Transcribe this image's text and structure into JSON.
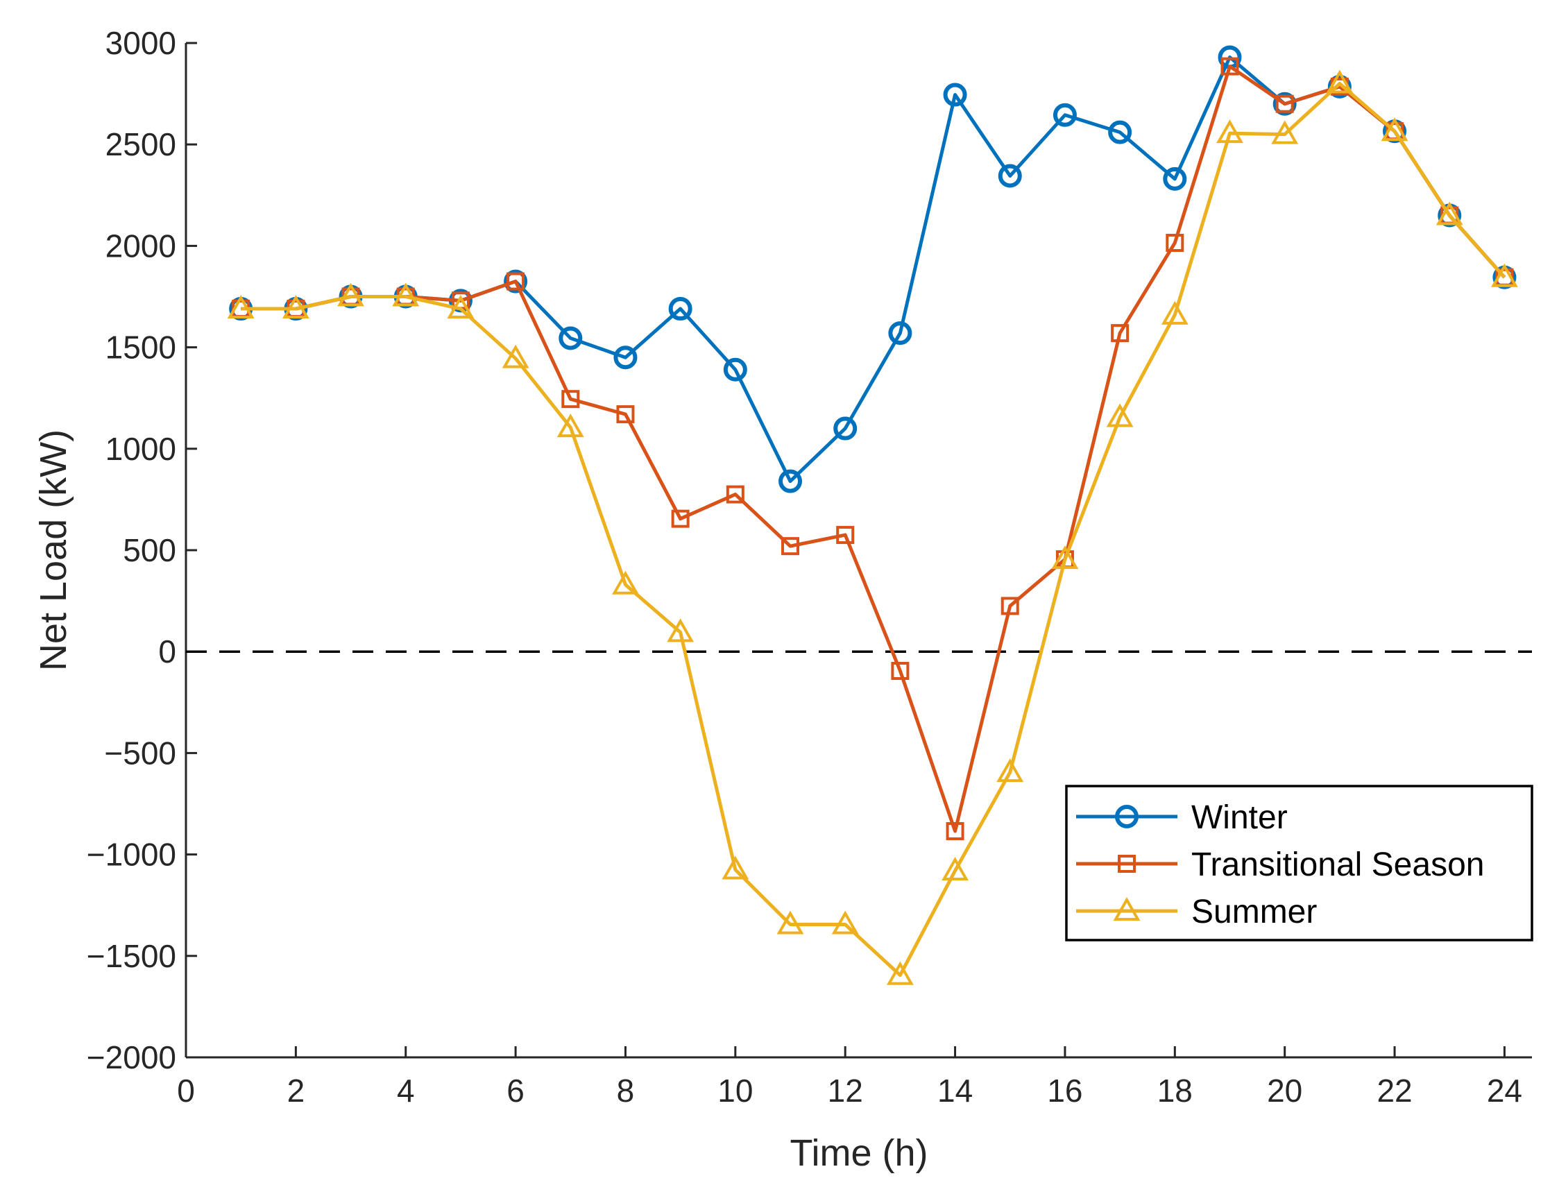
{
  "chart_data": {
    "type": "line",
    "title": "",
    "xlabel": "Time (h)",
    "ylabel": "Net Load (kW)",
    "xlim": [
      0,
      24.5
    ],
    "ylim": [
      -2000,
      3000
    ],
    "xticks": [
      0,
      2,
      4,
      6,
      8,
      10,
      12,
      14,
      16,
      18,
      20,
      22,
      24
    ],
    "yticks": [
      -2000,
      -1500,
      -1000,
      -500,
      0,
      500,
      1000,
      1500,
      2000,
      2500,
      3000
    ],
    "ytick_labels": [
      "−2000",
      "−1500",
      "−1000",
      "−500",
      "0",
      "500",
      "1000",
      "1500",
      "2000",
      "2500",
      "3000"
    ],
    "grid": false,
    "legend_position": "bottom-right",
    "reference_line": {
      "y": 0,
      "style": "dashed",
      "color": "#000000"
    },
    "x": [
      1,
      2,
      3,
      4,
      5,
      6,
      7,
      8,
      9,
      10,
      11,
      12,
      13,
      14,
      15,
      16,
      17,
      18,
      19,
      20,
      21,
      22,
      23,
      24
    ],
    "series": [
      {
        "name": "Winter",
        "color": "#0072BD",
        "marker": "circle",
        "values": [
          1690,
          1690,
          1750,
          1750,
          1730,
          1825,
          1545,
          1450,
          1690,
          1390,
          840,
          1100,
          1570,
          2745,
          2345,
          2645,
          2560,
          2330,
          2930,
          2700,
          2785,
          2565,
          2150,
          1845
        ]
      },
      {
        "name": "Transitional Season",
        "color": "#D95319",
        "marker": "square",
        "values": [
          1690,
          1690,
          1750,
          1750,
          1730,
          1825,
          1245,
          1170,
          655,
          775,
          520,
          575,
          -95,
          -885,
          225,
          455,
          1570,
          2015,
          2885,
          2700,
          2785,
          2565,
          2150,
          1845
        ]
      },
      {
        "name": "Summer",
        "color": "#EDB120",
        "marker": "triangle",
        "values": [
          1690,
          1690,
          1750,
          1750,
          1690,
          1445,
          1105,
          330,
          95,
          -1075,
          -1345,
          -1345,
          -1595,
          -1080,
          -595,
          455,
          1155,
          1660,
          2555,
          2550,
          2800,
          2565,
          2150,
          1845
        ]
      }
    ]
  }
}
